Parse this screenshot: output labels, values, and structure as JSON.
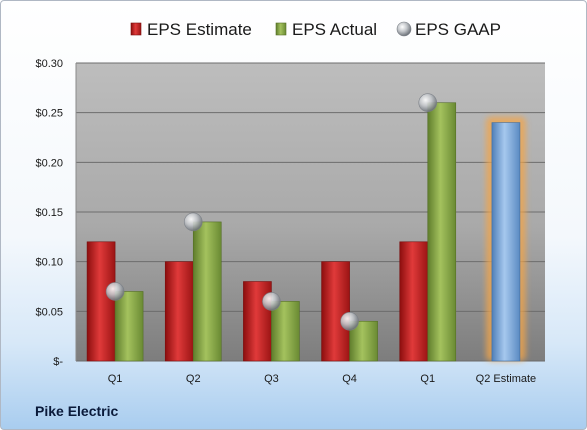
{
  "chart_data": {
    "type": "bar",
    "categories": [
      "Q1",
      "Q2",
      "Q3",
      "Q4",
      "Q1",
      "Q2 Estimate"
    ],
    "series": [
      {
        "name": "EPS Estimate",
        "values": [
          0.12,
          0.1,
          0.08,
          0.1,
          0.12,
          null
        ]
      },
      {
        "name": "EPS Actual",
        "values": [
          0.07,
          0.14,
          0.06,
          0.04,
          0.26,
          0.24
        ]
      },
      {
        "name": "EPS GAAP",
        "values": [
          0.07,
          0.14,
          0.06,
          0.04,
          0.26,
          null
        ]
      }
    ],
    "highlighted_category": "Q2 Estimate",
    "ylim": [
      0,
      0.3
    ],
    "yticks": [
      0,
      0.05,
      0.1,
      0.15,
      0.2,
      0.25,
      0.3
    ],
    "ytick_labels": [
      "$-",
      "$0.05",
      "$0.10",
      "$0.15",
      "$0.20",
      "$0.25",
      "$0.30"
    ],
    "grid": true,
    "legend_position": "top",
    "colors": {
      "estimate": "#cc1f1f",
      "actual": "#8fae4a",
      "gaap": "#b8bcc2",
      "forecast": "#7aa9dc",
      "forecast_glow": "#f3a54a"
    }
  },
  "footer": {
    "company": "Pike Electric"
  }
}
